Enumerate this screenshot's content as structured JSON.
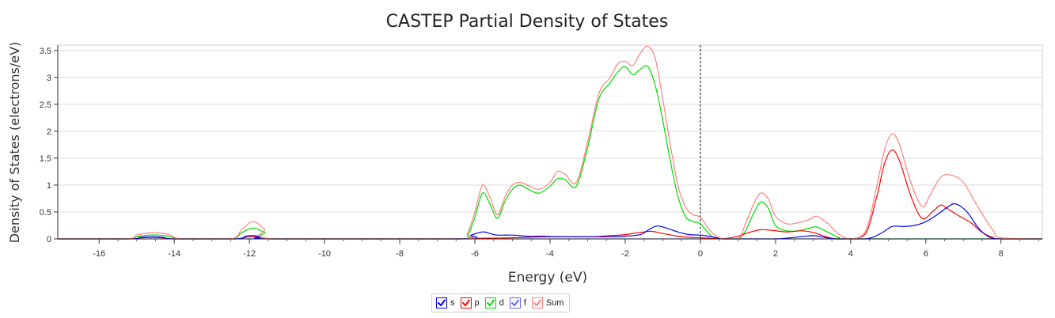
{
  "chart_data": {
    "type": "line",
    "title": "CASTEP Partial  Density of States",
    "xlabel": "Energy (eV)",
    "ylabel": "Density of States (electrons/eV)",
    "xlim": [
      -17.1,
      9.1
    ],
    "ylim": [
      0,
      3.6
    ],
    "x_ticks": [
      -16,
      -14,
      -12,
      -10,
      -8,
      -6,
      -4,
      -2,
      0,
      2,
      4,
      6,
      8
    ],
    "y_ticks": [
      0,
      0.5,
      1,
      1.5,
      2,
      2.5,
      3,
      3.5
    ],
    "x_tick_labels": [
      "-16",
      "-14",
      "-12",
      "-10",
      "-8",
      "-6",
      "-4",
      "-2",
      "0",
      "2",
      "4",
      "6",
      "8"
    ],
    "y_tick_labels": [
      "0",
      "0.5",
      "1",
      "1.5",
      "2",
      "2.5",
      "3",
      "3.5"
    ],
    "grid": true,
    "fermi_level": 0,
    "legend_position": "bottom-center",
    "series": [
      {
        "name": "s",
        "color": "#0000ff",
        "x": [
          -17.1,
          -15.2,
          -14.9,
          -14.6,
          -14.3,
          -14.0,
          -12.4,
          -12.1,
          -11.9,
          -11.7,
          -11.4,
          -6.4,
          -6.1,
          -5.8,
          -5.6,
          -5.4,
          -5.0,
          -4.6,
          -4.2,
          -3.8,
          -3.0,
          -2.4,
          -2.0,
          -1.6,
          -1.35,
          -1.15,
          -0.9,
          -0.6,
          -0.3,
          0.0,
          0.3,
          0.6,
          1.0,
          2.0,
          2.4,
          2.8,
          3.0,
          3.3,
          3.6,
          4.4,
          4.8,
          5.1,
          5.4,
          5.7,
          6.0,
          6.3,
          6.6,
          6.8,
          7.1,
          7.4,
          7.7,
          8.0,
          9.1
        ],
        "y": [
          0,
          0,
          0.03,
          0.04,
          0.03,
          0,
          0,
          0.05,
          0.06,
          0.04,
          0,
          0,
          0.07,
          0.13,
          0.1,
          0.07,
          0.07,
          0.05,
          0.05,
          0.04,
          0.04,
          0.04,
          0.05,
          0.08,
          0.18,
          0.24,
          0.2,
          0.13,
          0.08,
          0.07,
          0.04,
          0,
          0,
          0,
          0.02,
          0.05,
          0.06,
          0.03,
          0,
          0,
          0.1,
          0.23,
          0.23,
          0.25,
          0.32,
          0.45,
          0.6,
          0.65,
          0.5,
          0.2,
          0.03,
          0,
          0
        ]
      },
      {
        "name": "p",
        "color": "#ff0000",
        "x": [
          -17.1,
          -15.2,
          -14.9,
          -14.6,
          -14.3,
          -14.0,
          -12.4,
          -12.1,
          -11.9,
          -11.7,
          -11.4,
          -6.4,
          -6.0,
          -5.0,
          -4.0,
          -3.0,
          -2.4,
          -2.0,
          -1.6,
          -1.3,
          -1.0,
          -0.6,
          -0.3,
          0.0,
          0.3,
          0.6,
          1.0,
          1.3,
          1.6,
          1.9,
          2.3,
          2.7,
          3.0,
          3.3,
          3.6,
          4.0,
          4.4,
          4.7,
          4.9,
          5.1,
          5.3,
          5.6,
          5.9,
          6.2,
          6.4,
          6.6,
          6.9,
          7.2,
          7.5,
          7.8,
          8.0,
          9.1
        ],
        "y": [
          0,
          0,
          0.02,
          0.03,
          0.02,
          0,
          0,
          0.03,
          0.04,
          0.03,
          0,
          0,
          0.01,
          0.02,
          0.04,
          0.04,
          0.06,
          0.08,
          0.12,
          0.14,
          0.1,
          0.05,
          0.03,
          0.02,
          0.01,
          0,
          0.05,
          0.12,
          0.17,
          0.16,
          0.13,
          0.15,
          0.12,
          0.05,
          0,
          0,
          0.1,
          0.8,
          1.4,
          1.65,
          1.45,
          0.8,
          0.38,
          0.52,
          0.63,
          0.55,
          0.42,
          0.3,
          0.12,
          0.02,
          0,
          0
        ]
      },
      {
        "name": "d",
        "color": "#00dd00",
        "x": [
          -17.1,
          -15.3,
          -15.0,
          -14.7,
          -14.4,
          -14.1,
          -13.8,
          -12.5,
          -12.2,
          -11.9,
          -11.6,
          -11.3,
          -6.4,
          -6.2,
          -6.0,
          -5.8,
          -5.6,
          -5.4,
          -5.2,
          -5.0,
          -4.8,
          -4.6,
          -4.3,
          -4.0,
          -3.8,
          -3.6,
          -3.3,
          -3.0,
          -2.7,
          -2.4,
          -2.2,
          -2.0,
          -1.8,
          -1.6,
          -1.4,
          -1.2,
          -1.0,
          -0.8,
          -0.6,
          -0.4,
          -0.2,
          0.0,
          0.3,
          0.6,
          1.0,
          1.2,
          1.4,
          1.6,
          1.8,
          2.0,
          2.3,
          2.6,
          2.9,
          3.1,
          3.4,
          3.7,
          4.0,
          9.1
        ],
        "y": [
          0,
          0,
          0.04,
          0.07,
          0.07,
          0.04,
          0,
          0,
          0.12,
          0.2,
          0.12,
          0,
          0,
          0.05,
          0.4,
          0.85,
          0.65,
          0.38,
          0.7,
          0.92,
          1.0,
          0.93,
          0.85,
          0.98,
          1.12,
          1.1,
          0.98,
          1.7,
          2.6,
          2.9,
          3.1,
          3.2,
          3.05,
          3.15,
          3.2,
          2.85,
          2.2,
          1.45,
          0.8,
          0.42,
          0.32,
          0.28,
          0.05,
          0,
          0,
          0.15,
          0.45,
          0.68,
          0.58,
          0.25,
          0.15,
          0.15,
          0.2,
          0.22,
          0.12,
          0.02,
          0,
          0
        ]
      },
      {
        "name": "f",
        "color": "#6666ff",
        "x": [
          -17.1,
          9.1
        ],
        "y": [
          0,
          0
        ]
      },
      {
        "name": "Sum",
        "color": "#ff8080",
        "x": [
          -17.1,
          -15.3,
          -15.0,
          -14.7,
          -14.4,
          -14.1,
          -13.8,
          -12.5,
          -12.2,
          -11.9,
          -11.6,
          -11.3,
          -6.4,
          -6.2,
          -6.0,
          -5.8,
          -5.6,
          -5.4,
          -5.2,
          -5.0,
          -4.8,
          -4.6,
          -4.3,
          -4.0,
          -3.8,
          -3.6,
          -3.3,
          -3.0,
          -2.7,
          -2.4,
          -2.2,
          -2.0,
          -1.8,
          -1.6,
          -1.4,
          -1.2,
          -1.0,
          -0.8,
          -0.6,
          -0.4,
          -0.2,
          0.0,
          0.3,
          0.6,
          1.0,
          1.2,
          1.4,
          1.6,
          1.8,
          2.0,
          2.3,
          2.6,
          2.9,
          3.1,
          3.4,
          3.7,
          4.0,
          4.4,
          4.7,
          4.9,
          5.1,
          5.3,
          5.6,
          5.9,
          6.1,
          6.4,
          6.7,
          7.0,
          7.3,
          7.6,
          7.8,
          8.0,
          9.1
        ],
        "y": [
          0,
          0,
          0.07,
          0.11,
          0.11,
          0.07,
          0,
          0,
          0.18,
          0.32,
          0.18,
          0,
          0,
          0.1,
          0.5,
          1.0,
          0.77,
          0.45,
          0.78,
          1.0,
          1.05,
          1.0,
          0.92,
          1.05,
          1.25,
          1.2,
          1.05,
          1.8,
          2.7,
          3.0,
          3.25,
          3.3,
          3.22,
          3.45,
          3.58,
          3.35,
          2.6,
          1.75,
          1.0,
          0.6,
          0.45,
          0.4,
          0.12,
          0,
          0,
          0.28,
          0.62,
          0.85,
          0.75,
          0.42,
          0.28,
          0.3,
          0.36,
          0.42,
          0.28,
          0.08,
          0,
          0.15,
          1.0,
          1.65,
          1.95,
          1.75,
          1.05,
          0.6,
          0.8,
          1.15,
          1.18,
          1.05,
          0.7,
          0.35,
          0.15,
          0.02,
          0
        ]
      }
    ]
  },
  "legend": {
    "items": [
      {
        "label": "s",
        "color": "#0000ff"
      },
      {
        "label": "p",
        "color": "#ff0000"
      },
      {
        "label": "d",
        "color": "#00dd00"
      },
      {
        "label": "f",
        "color": "#6666ff"
      },
      {
        "label": "Sum",
        "color": "#ff8080"
      }
    ]
  }
}
